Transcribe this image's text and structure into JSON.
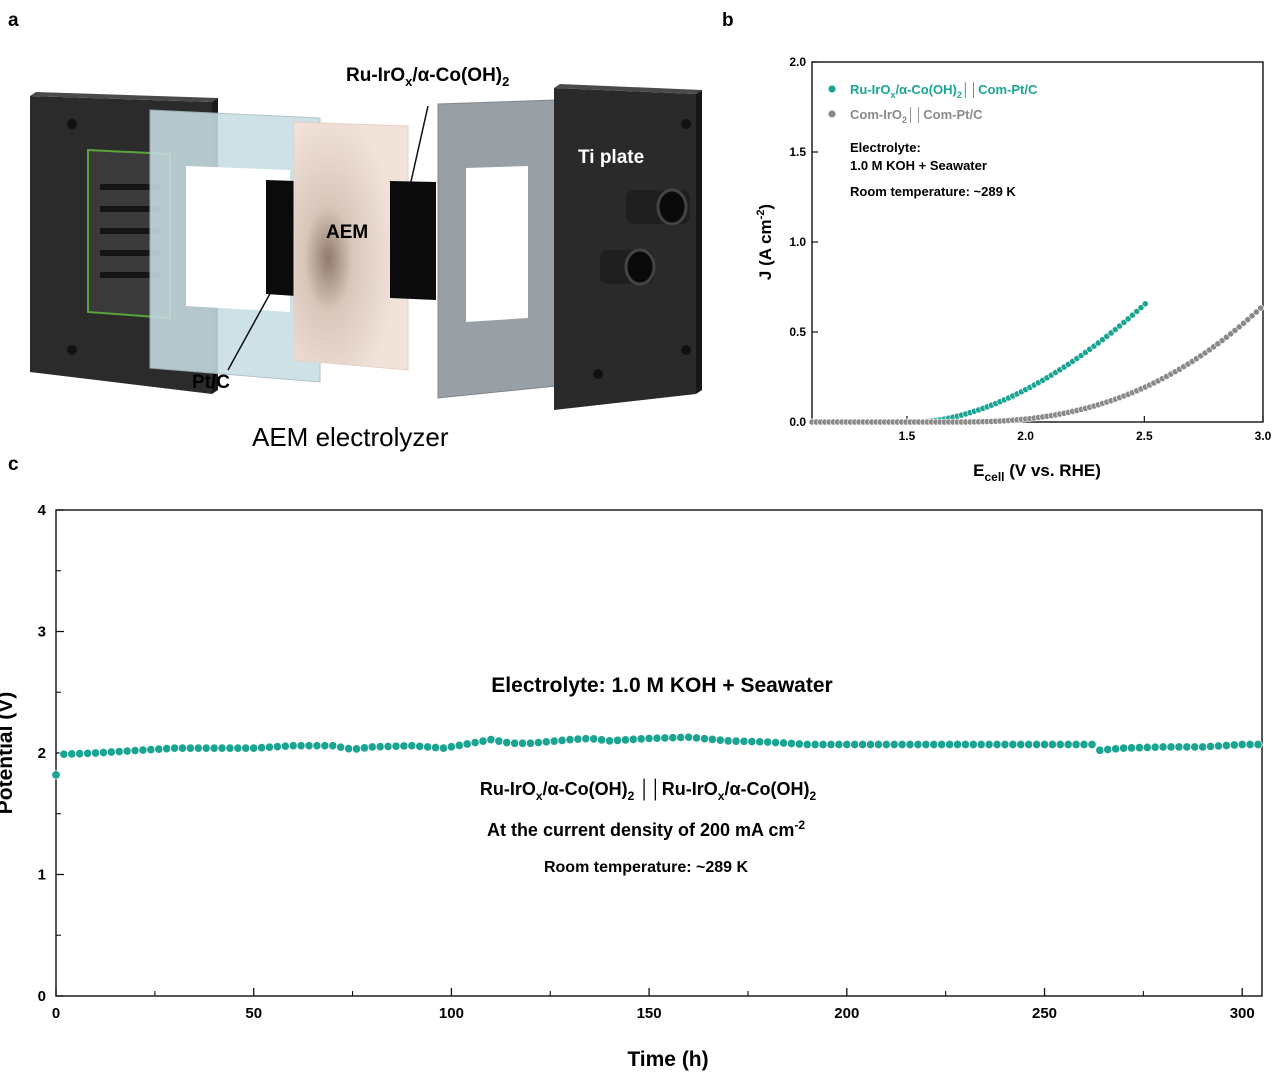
{
  "panels": {
    "a": "a",
    "b": "b",
    "c": "c"
  },
  "diagram": {
    "title": "AEM electrolyzer",
    "labels": {
      "anode_catalyst_main": "Ru-IrO",
      "anode_catalyst_sub": "x",
      "anode_catalyst_tail": "/α-Co(OH)",
      "anode_catalyst_sub2": "2",
      "membrane": "AEM",
      "cathode_catalyst": "Pt/C",
      "plate": "Ti plate"
    },
    "colors": {
      "end_plate": "#2e2e2e",
      "gasket": "#c9dbe0",
      "membrane": "#efe0d6",
      "catalyst": "#0a0a0a",
      "gray_gasket": "#9aa1a6",
      "flow_field_edge": "#5aa33a"
    }
  },
  "chart_data": [
    {
      "id": "polarization",
      "type": "scatter",
      "xlabel_main": "E",
      "xlabel_sub": "cell",
      "xlabel_tail": " (V vs. RHE)",
      "ylabel_main": "J (A cm",
      "ylabel_sup": "-2",
      "ylabel_tail": ")",
      "xlim": [
        1.1,
        3.0
      ],
      "ylim": [
        0.0,
        2.0
      ],
      "xticks": [
        "1.5",
        "2.0",
        "2.5",
        "3.0"
      ],
      "yticks": [
        "0.0",
        "0.5",
        "1.0",
        "1.5",
        "2.0"
      ],
      "xtick_values": [
        1.5,
        2.0,
        2.5,
        3.0
      ],
      "ytick_values": [
        0.0,
        0.5,
        1.0,
        1.5,
        2.0
      ],
      "legend_position": "top-left",
      "series": [
        {
          "label_parts": [
            "Ru-IrO",
            "x",
            "/α-Co(OH)",
            "2",
            "││Com-Pt/C"
          ],
          "color": "#1aa592",
          "x_start": 1.1,
          "x_end": 2.52,
          "x_step": 0.018,
          "onset": 1.54,
          "k": 0.7,
          "exp": 1.75
        },
        {
          "label_parts": [
            "Com-IrO",
            "2",
            "││Com-Pt/C"
          ],
          "color": "#8a8a8a",
          "x_start": 1.1,
          "x_end": 3.0,
          "x_step": 0.018,
          "onset": 1.7,
          "k": 0.335,
          "exp": 2.5
        }
      ],
      "annotations": [
        "Electrolyte:",
        "1.0 M KOH + Seawater",
        "Room temperature: ~289 K"
      ]
    },
    {
      "id": "stability",
      "type": "scatter",
      "xlabel": "Time (h)",
      "ylabel": "Potential (V)",
      "xlim": [
        0,
        305
      ],
      "ylim": [
        0,
        4
      ],
      "xticks": [
        "0",
        "50",
        "100",
        "150",
        "200",
        "250",
        "300"
      ],
      "yticks": [
        "0",
        "1",
        "2",
        "3",
        "4"
      ],
      "xtick_values": [
        0,
        50,
        100,
        150,
        200,
        250,
        300
      ],
      "ytick_values": [
        0,
        1,
        2,
        3,
        4
      ],
      "color": "#1aa592",
      "series": [
        {
          "name": "",
          "x": [
            0,
            2,
            10,
            20,
            30,
            40,
            50,
            60,
            70,
            75,
            80,
            90,
            98,
            105,
            110,
            115,
            120,
            130,
            135,
            140,
            150,
            160,
            170,
            180,
            190,
            200,
            220,
            240,
            262,
            263,
            270,
            280,
            290,
            300,
            305
          ],
          "y": [
            1.82,
            1.99,
            2.0,
            2.02,
            2.04,
            2.04,
            2.04,
            2.06,
            2.06,
            2.03,
            2.05,
            2.06,
            2.04,
            2.08,
            2.11,
            2.08,
            2.08,
            2.11,
            2.12,
            2.1,
            2.12,
            2.13,
            2.1,
            2.09,
            2.07,
            2.07,
            2.07,
            2.07,
            2.07,
            2.02,
            2.04,
            2.05,
            2.05,
            2.07,
            2.07
          ]
        }
      ],
      "annotations": {
        "electrolyte": "Electrolyte: 1.0 M KOH + Seawater",
        "pair_parts": [
          "Ru-IrO",
          "x",
          "/α-Co(OH)",
          "2",
          " ││Ru-IrO",
          "x",
          "/α-Co(OH)",
          "2"
        ],
        "current_main": "At the current density of 200 mA cm",
        "current_sup": "-2",
        "temperature": "Room temperature: ~289 K"
      }
    }
  ]
}
